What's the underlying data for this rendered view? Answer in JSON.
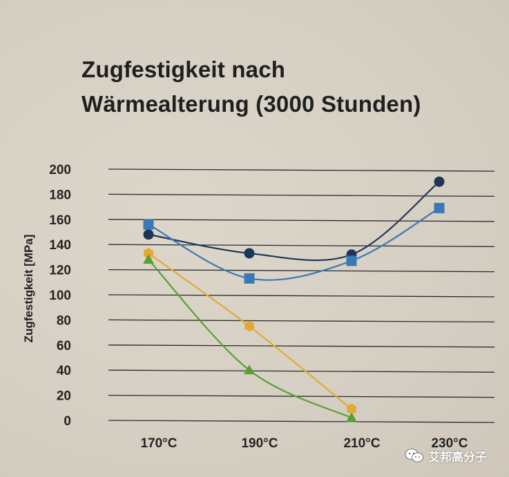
{
  "title": {
    "line1": "Zugfestigkeit nach",
    "line2": "Wärmealterung (3000 Stunden)"
  },
  "watermark": {
    "text": "艾邦高分子",
    "icon": "wechat-icon"
  },
  "chart_data": {
    "type": "line",
    "title": "Zugfestigkeit nach Wärmealterung (3000 Stunden)",
    "xlabel": "",
    "ylabel": "Zugfestigkeit [MPa]",
    "categories": [
      "170°C",
      "190°C",
      "210°C",
      "230°C"
    ],
    "yticks": [
      0,
      20,
      40,
      60,
      80,
      100,
      120,
      140,
      160,
      180,
      200
    ],
    "ylim": [
      0,
      200
    ],
    "grid": true,
    "legend": "none",
    "series": [
      {
        "color": "#1e3558",
        "marker": "circle",
        "values": [
          148,
          133,
          132,
          190
        ]
      },
      {
        "color": "#3a78b6",
        "marker": "square",
        "values": [
          156,
          113,
          127,
          169
        ]
      },
      {
        "color": "#e2aa35",
        "marker": "hexagon",
        "values": [
          133,
          75,
          9,
          null
        ]
      },
      {
        "color": "#58a033",
        "marker": "triangle",
        "values": [
          128,
          40,
          2,
          null
        ]
      }
    ]
  }
}
